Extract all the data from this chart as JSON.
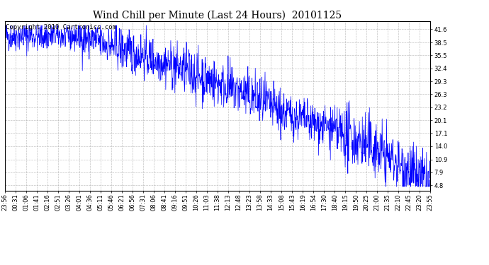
{
  "title": "Wind Chill per Minute (Last 24 Hours)  20101125",
  "copyright_text": "Copyright 2010 Cartronics.com",
  "line_color": "#0000ff",
  "bg_color": "#ffffff",
  "grid_color": "#aaaaaa",
  "yticks": [
    4.8,
    7.9,
    10.9,
    14.0,
    17.1,
    20.1,
    23.2,
    26.3,
    29.3,
    32.4,
    35.5,
    38.5,
    41.6
  ],
  "ylim": [
    3.5,
    43.5
  ],
  "x_tick_labels": [
    "23:56",
    "00:31",
    "01:06",
    "01:41",
    "02:16",
    "02:51",
    "03:26",
    "04:01",
    "04:36",
    "05:11",
    "05:46",
    "06:21",
    "06:56",
    "07:31",
    "08:06",
    "08:41",
    "09:16",
    "09:51",
    "10:26",
    "11:03",
    "11:38",
    "12:13",
    "12:48",
    "13:23",
    "13:58",
    "14:33",
    "15:08",
    "15:43",
    "16:19",
    "16:54",
    "17:30",
    "18:40",
    "19:15",
    "19:50",
    "20:25",
    "21:00",
    "21:35",
    "22:10",
    "22:45",
    "23:20",
    "23:55"
  ],
  "seed": 42,
  "title_fontsize": 10,
  "copyright_fontsize": 6.5,
  "tick_fontsize": 6,
  "n_points": 1440,
  "breakpoints": [
    0.0,
    0.18,
    0.38,
    0.55,
    0.65,
    0.78,
    0.87,
    1.0
  ],
  "breakvalues": [
    40.0,
    40.0,
    33.5,
    27.0,
    22.0,
    17.5,
    13.5,
    4.8
  ]
}
